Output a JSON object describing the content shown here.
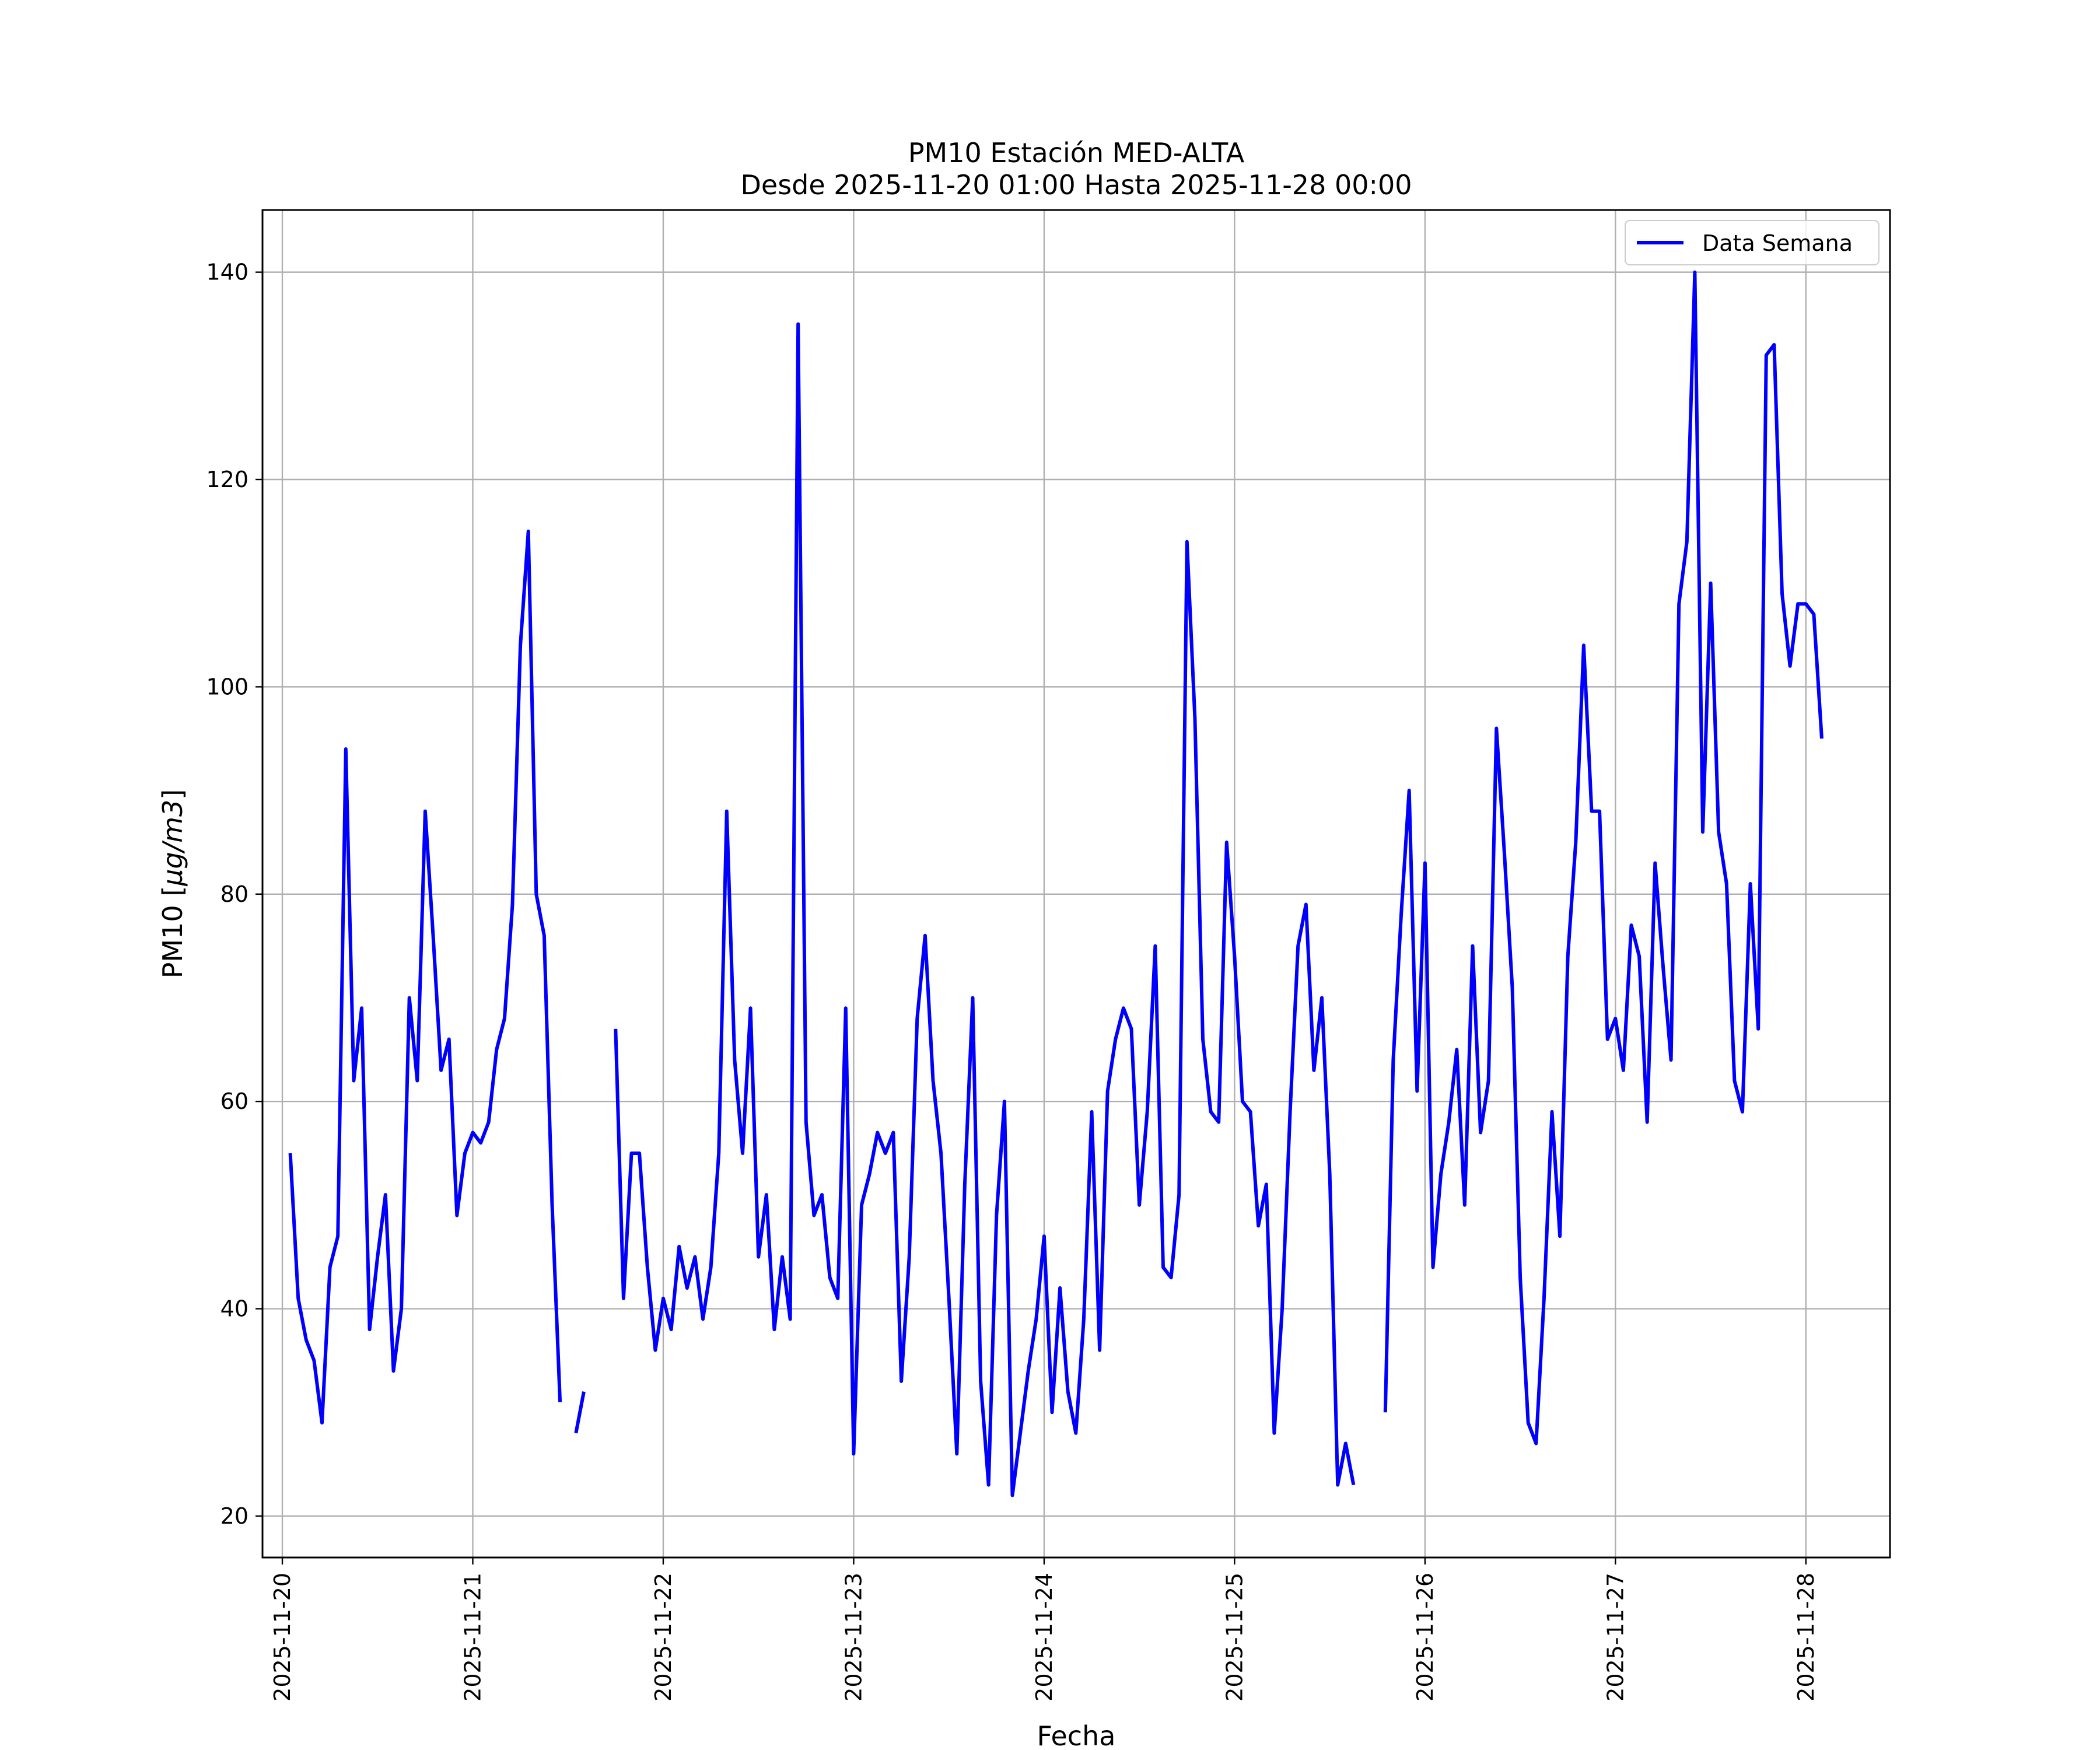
{
  "chart_data": {
    "type": "line",
    "title": "PM10 Estación MED-ALTA",
    "subtitle": "Desde 2025-11-20 01:00 Hasta 2025-11-28 00:00",
    "xlabel": "Fecha",
    "ylabel_main": "PM10 [",
    "ylabel_unit": "μg/m3",
    "ylabel_end": "]",
    "ylim": [
      16,
      146
    ],
    "yticks": [
      20,
      40,
      60,
      80,
      100,
      120,
      140
    ],
    "ytick_labels": [
      "20",
      "40",
      "60",
      "80",
      "100",
      "120",
      "140"
    ],
    "xlim_hours": [
      -3.5,
      201.6
    ],
    "x_start": "2025-11-20 01:00",
    "x_step_hours": 1,
    "xticks": [
      "2025-11-20",
      "2025-11-21",
      "2025-11-22",
      "2025-11-23",
      "2025-11-24",
      "2025-11-25",
      "2025-11-26",
      "2025-11-27",
      "2025-11-28"
    ],
    "grid": true,
    "legend": "top-right",
    "series": [
      {
        "name": "Data Semana",
        "color": "#0000ff",
        "values": [
          55,
          41,
          37,
          35,
          29,
          44,
          47,
          94,
          62,
          69,
          38,
          45,
          51,
          34,
          40,
          70,
          62,
          88,
          76,
          63,
          66,
          49,
          55,
          57,
          56,
          58,
          65,
          68,
          79,
          104,
          115,
          80,
          76,
          50,
          31,
          null,
          28,
          32,
          null,
          null,
          null,
          67,
          41,
          55,
          55,
          44,
          36,
          41,
          38,
          46,
          42,
          45,
          39,
          44,
          55,
          88,
          64,
          55,
          69,
          45,
          51,
          38,
          45,
          39,
          135,
          58,
          49,
          51,
          43,
          41,
          69,
          26,
          50,
          53,
          57,
          55,
          57,
          33,
          45,
          68,
          76,
          62,
          55,
          41,
          26,
          52,
          70,
          33,
          23,
          49,
          60,
          22,
          28,
          34,
          39,
          47,
          30,
          42,
          32,
          28,
          39,
          59,
          36,
          61,
          66,
          69,
          67,
          50,
          59,
          75,
          44,
          43,
          51,
          114,
          97,
          66,
          59,
          58,
          85,
          74,
          60,
          59,
          48,
          52,
          28,
          40,
          59,
          75,
          79,
          63,
          70,
          53,
          23,
          27,
          23,
          null,
          null,
          null,
          30,
          64,
          78,
          90,
          61,
          83,
          44,
          53,
          58,
          65,
          50,
          75,
          57,
          62,
          96,
          84,
          71,
          43,
          29,
          27,
          41,
          59,
          47,
          74,
          85,
          104,
          88,
          88,
          66,
          68,
          63,
          77,
          74,
          58,
          83,
          73,
          64,
          108,
          114,
          140,
          86,
          110,
          86,
          81,
          62,
          59,
          81,
          67,
          132,
          133,
          109,
          102,
          108,
          108,
          107,
          95
        ]
      }
    ]
  }
}
